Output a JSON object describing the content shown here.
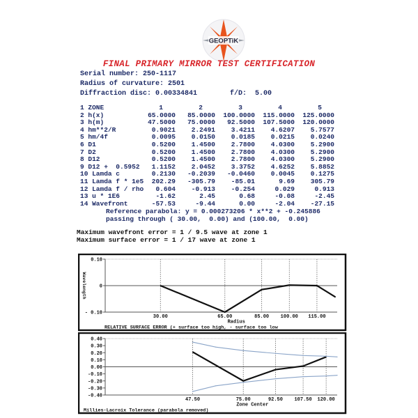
{
  "logo": {
    "text": "GEOPTiK",
    "colors": [
      "#e8541e",
      "#9aa0a8"
    ]
  },
  "title": "FINAL PRIMARY MIRROR TEST CERTIFICATION",
  "serial": "Serial number: 250-1117",
  "radius": "Radius of curvature: 2501",
  "diffraction": "Diffraction disc: 0.00334841",
  "fd": "f/D:  5.00",
  "table": {
    "rows": [
      {
        "label": "1 ZONE",
        "values": [
          "1",
          "2",
          "3",
          "4",
          "5"
        ]
      },
      {
        "label": "2 h(x)",
        "values": [
          "65.0000",
          "85.0000",
          "100.0000",
          "115.0000",
          "125.0000"
        ]
      },
      {
        "label": "3 h(m)",
        "values": [
          "47.5000",
          "75.0000",
          "92.5000",
          "107.5000",
          "120.0000"
        ]
      },
      {
        "label": "4 hm**2/R",
        "values": [
          "0.9021",
          "2.2491",
          "3.4211",
          "4.6207",
          "5.7577"
        ]
      },
      {
        "label": "5 hm/4f",
        "values": [
          "0.0095",
          "0.0150",
          "0.0185",
          "0.0215",
          "0.0240"
        ]
      },
      {
        "label": "6 D1",
        "values": [
          "0.5200",
          "1.4500",
          "2.7800",
          "4.0300",
          "5.2900"
        ]
      },
      {
        "label": "7 D2",
        "values": [
          "0.5200",
          "1.4500",
          "2.7800",
          "4.0300",
          "5.2900"
        ]
      },
      {
        "label": "8 D12",
        "values": [
          "0.5200",
          "1.4500",
          "2.7800",
          "4.0300",
          "5.2900"
        ]
      },
      {
        "label": "9 D12 +  0.5952",
        "values": [
          "1.1152",
          "2.0452",
          "3.3752",
          "4.6252",
          "5.8852"
        ]
      },
      {
        "label": "10 Lamda c",
        "values": [
          "0.2130",
          "-0.2039",
          "-0.0460",
          "0.0045",
          "0.1275"
        ]
      },
      {
        "label": "11 Lamda f * 1e5",
        "values": [
          "202.29",
          "-305.79",
          "-85.01",
          "9.69",
          "305.79"
        ]
      },
      {
        "label": "12 Lamda f / rho",
        "values": [
          "0.604",
          "-0.913",
          "-0.254",
          "0.029",
          "0.913"
        ]
      },
      {
        "label": "13 u * 1E6",
        "values": [
          "-1.62",
          "2.45",
          "0.68",
          "-0.08",
          "-2.45"
        ]
      },
      {
        "label": "14 Wavefront",
        "values": [
          "-57.53",
          "-9.44",
          "0.00",
          "-2.04",
          "-27.15"
        ]
      }
    ]
  },
  "parabola": "Reference parabola: y = 0.000273206 * x**2 + -0.245886",
  "passing": "passing through ( 30.00,  0.00) and (100.00,  0.00)",
  "max_wavefront": "Maximum wavefront error = 1 / 9.5 wave at zone 1",
  "max_surface": "Maximum surface error = 1 / 17 wave at zone 1",
  "chart_data": [
    {
      "type": "line",
      "title": "RELATIVE SURFACE ERROR (+ surface too high, - surface too low",
      "xlabel": "Radius",
      "ylabel": "Wavelength",
      "xlim": [
        0,
        126
      ],
      "ylim": [
        -0.1,
        0.1
      ],
      "xticks": [
        30,
        65,
        85,
        100,
        115
      ],
      "xtick_labels": [
        "30.00",
        "65.00",
        "85.00",
        "100.00",
        "115.00"
      ],
      "yticks": [
        0.1,
        0,
        -0.1
      ],
      "ytick_labels": [
        "0.10",
        "0",
        "- 0.10"
      ],
      "grid": "vertical dotted at ticks",
      "series": [
        {
          "x": [
            30,
            65,
            85,
            100,
            115,
            125
          ],
          "y": [
            0,
            -0.1,
            -0.015,
            0.002,
            0,
            -0.043
          ]
        }
      ]
    },
    {
      "type": "line",
      "title": "Millies-Lacroix Tolerance (parabola removed)",
      "xlabel": "Zone Center",
      "xlim": [
        0,
        126
      ],
      "ylim": [
        -0.4,
        0.4
      ],
      "xticks": [
        47.5,
        75,
        92.5,
        107.5,
        120
      ],
      "xtick_labels": [
        "47.50",
        "75.00",
        "92.50",
        "107.50",
        "120.00"
      ],
      "yticks": [
        0.4,
        0.3,
        0.2,
        0.1,
        0,
        -0.1,
        -0.2,
        -0.3,
        -0.4
      ],
      "ytick_labels": [
        "0.40",
        "0.30",
        "0.20",
        "0.10",
        "0.00",
        "-0.10",
        "-0.20",
        "-0.30",
        "-0.40"
      ],
      "grid": "vertical dotted at ticks",
      "series": [
        {
          "x": [
            47.5,
            75,
            92.5,
            107.5,
            120
          ],
          "y": [
            0.21,
            -0.2,
            -0.04,
            0.01,
            0.14
          ],
          "color": "#111111"
        },
        {
          "x": [
            47.5,
            60,
            75,
            92.5,
            107.5,
            120,
            126
          ],
          "y": [
            0.35,
            0.28,
            0.23,
            0.19,
            0.16,
            0.15,
            0.14
          ],
          "color": "#8aa4c8"
        },
        {
          "x": [
            47.5,
            60,
            75,
            92.5,
            107.5,
            120,
            126
          ],
          "y": [
            -0.35,
            -0.27,
            -0.22,
            -0.17,
            -0.14,
            -0.13,
            -0.12
          ],
          "color": "#8aa4c8"
        }
      ]
    }
  ]
}
